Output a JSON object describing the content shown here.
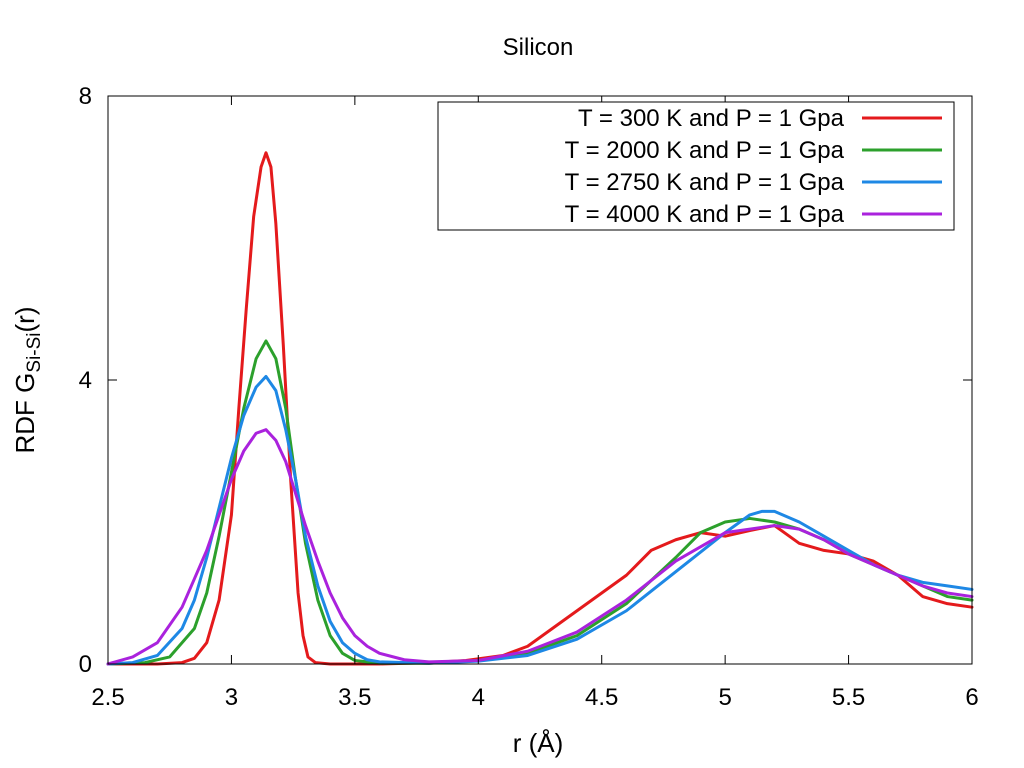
{
  "chart_data": {
    "type": "line",
    "title": "Silicon",
    "xlabel": "r (Å)",
    "ylabel": {
      "main": "RDF G",
      "subscript": "Si-Si",
      "suffix": "(r)"
    },
    "xlim": [
      2.5,
      6
    ],
    "ylim": [
      0,
      8
    ],
    "xticks": [
      2.5,
      3,
      3.5,
      4,
      4.5,
      5,
      5.5,
      6
    ],
    "xtick_labels": [
      "2.5",
      "3",
      "3.5",
      "4",
      "4.5",
      "5",
      "5.5",
      "6"
    ],
    "yticks": [
      0,
      4,
      8
    ],
    "ytick_labels": [
      "0",
      "4",
      "8"
    ],
    "grid": false,
    "legend_position": "top-right",
    "series": [
      {
        "name": "T = 300 K and P = 1 Gpa",
        "color": "#e41a1c",
        "x": [
          2.5,
          2.7,
          2.8,
          2.85,
          2.9,
          2.95,
          3.0,
          3.03,
          3.06,
          3.09,
          3.12,
          3.14,
          3.16,
          3.18,
          3.21,
          3.24,
          3.27,
          3.29,
          3.31,
          3.34,
          3.4,
          3.6,
          3.8,
          3.95,
          4.1,
          4.2,
          4.3,
          4.4,
          4.5,
          4.6,
          4.7,
          4.8,
          4.9,
          5.0,
          5.1,
          5.2,
          5.3,
          5.4,
          5.5,
          5.6,
          5.7,
          5.8,
          5.9,
          6.0
        ],
        "y": [
          0,
          0,
          0.02,
          0.08,
          0.3,
          0.9,
          2.1,
          3.6,
          5.0,
          6.3,
          7.0,
          7.2,
          7.0,
          6.2,
          4.5,
          2.6,
          1.0,
          0.4,
          0.1,
          0.02,
          0,
          0,
          0.02,
          0.05,
          0.12,
          0.25,
          0.5,
          0.75,
          1.0,
          1.25,
          1.6,
          1.75,
          1.85,
          1.8,
          1.88,
          1.95,
          1.7,
          1.6,
          1.55,
          1.45,
          1.25,
          0.95,
          0.85,
          0.8
        ]
      },
      {
        "name": "T = 2000 K and P = 1 Gpa",
        "color": "#2ca02c",
        "x": [
          2.5,
          2.65,
          2.75,
          2.85,
          2.9,
          2.95,
          3.0,
          3.05,
          3.1,
          3.14,
          3.18,
          3.22,
          3.26,
          3.3,
          3.35,
          3.4,
          3.45,
          3.5,
          3.6,
          3.8,
          4.0,
          4.2,
          4.4,
          4.6,
          4.8,
          4.9,
          5.0,
          5.1,
          5.2,
          5.3,
          5.4,
          5.5,
          5.6,
          5.7,
          5.8,
          5.9,
          6.0
        ],
        "y": [
          0,
          0.02,
          0.1,
          0.5,
          1.0,
          1.8,
          2.7,
          3.6,
          4.3,
          4.55,
          4.3,
          3.6,
          2.6,
          1.7,
          0.9,
          0.4,
          0.15,
          0.05,
          0.01,
          0.01,
          0.05,
          0.15,
          0.4,
          0.85,
          1.5,
          1.85,
          2.0,
          2.05,
          2.0,
          1.9,
          1.75,
          1.55,
          1.4,
          1.25,
          1.1,
          0.95,
          0.9
        ]
      },
      {
        "name": "T = 2750 K and P = 1 Gpa",
        "color": "#1e88e5",
        "x": [
          2.5,
          2.6,
          2.7,
          2.8,
          2.85,
          2.9,
          2.95,
          3.0,
          3.05,
          3.1,
          3.14,
          3.18,
          3.22,
          3.26,
          3.3,
          3.35,
          3.4,
          3.45,
          3.5,
          3.55,
          3.6,
          3.8,
          4.0,
          4.2,
          4.4,
          4.6,
          4.8,
          5.0,
          5.1,
          5.15,
          5.2,
          5.3,
          5.4,
          5.5,
          5.6,
          5.7,
          5.8,
          5.9,
          6.0
        ],
        "y": [
          0,
          0.02,
          0.12,
          0.5,
          0.9,
          1.5,
          2.2,
          2.9,
          3.5,
          3.9,
          4.05,
          3.85,
          3.3,
          2.6,
          1.8,
          1.1,
          0.6,
          0.3,
          0.15,
          0.06,
          0.03,
          0.01,
          0.04,
          0.12,
          0.35,
          0.75,
          1.3,
          1.85,
          2.1,
          2.15,
          2.15,
          2.0,
          1.8,
          1.6,
          1.4,
          1.25,
          1.15,
          1.1,
          1.05
        ]
      },
      {
        "name": "T = 4000 K and P = 1 Gpa",
        "color": "#aa22dd",
        "x": [
          2.5,
          2.6,
          2.7,
          2.8,
          2.85,
          2.9,
          2.95,
          3.0,
          3.05,
          3.1,
          3.14,
          3.18,
          3.22,
          3.26,
          3.3,
          3.35,
          3.4,
          3.45,
          3.5,
          3.55,
          3.6,
          3.7,
          3.8,
          4.0,
          4.2,
          4.4,
          4.6,
          4.8,
          5.0,
          5.2,
          5.3,
          5.4,
          5.5,
          5.6,
          5.7,
          5.8,
          5.9,
          6.0
        ],
        "y": [
          0,
          0.1,
          0.3,
          0.8,
          1.2,
          1.6,
          2.1,
          2.6,
          3.0,
          3.25,
          3.3,
          3.15,
          2.85,
          2.4,
          1.95,
          1.45,
          1.0,
          0.65,
          0.4,
          0.25,
          0.15,
          0.06,
          0.03,
          0.05,
          0.18,
          0.45,
          0.9,
          1.45,
          1.85,
          1.95,
          1.9,
          1.75,
          1.55,
          1.4,
          1.25,
          1.1,
          1.0,
          0.95
        ]
      }
    ]
  }
}
